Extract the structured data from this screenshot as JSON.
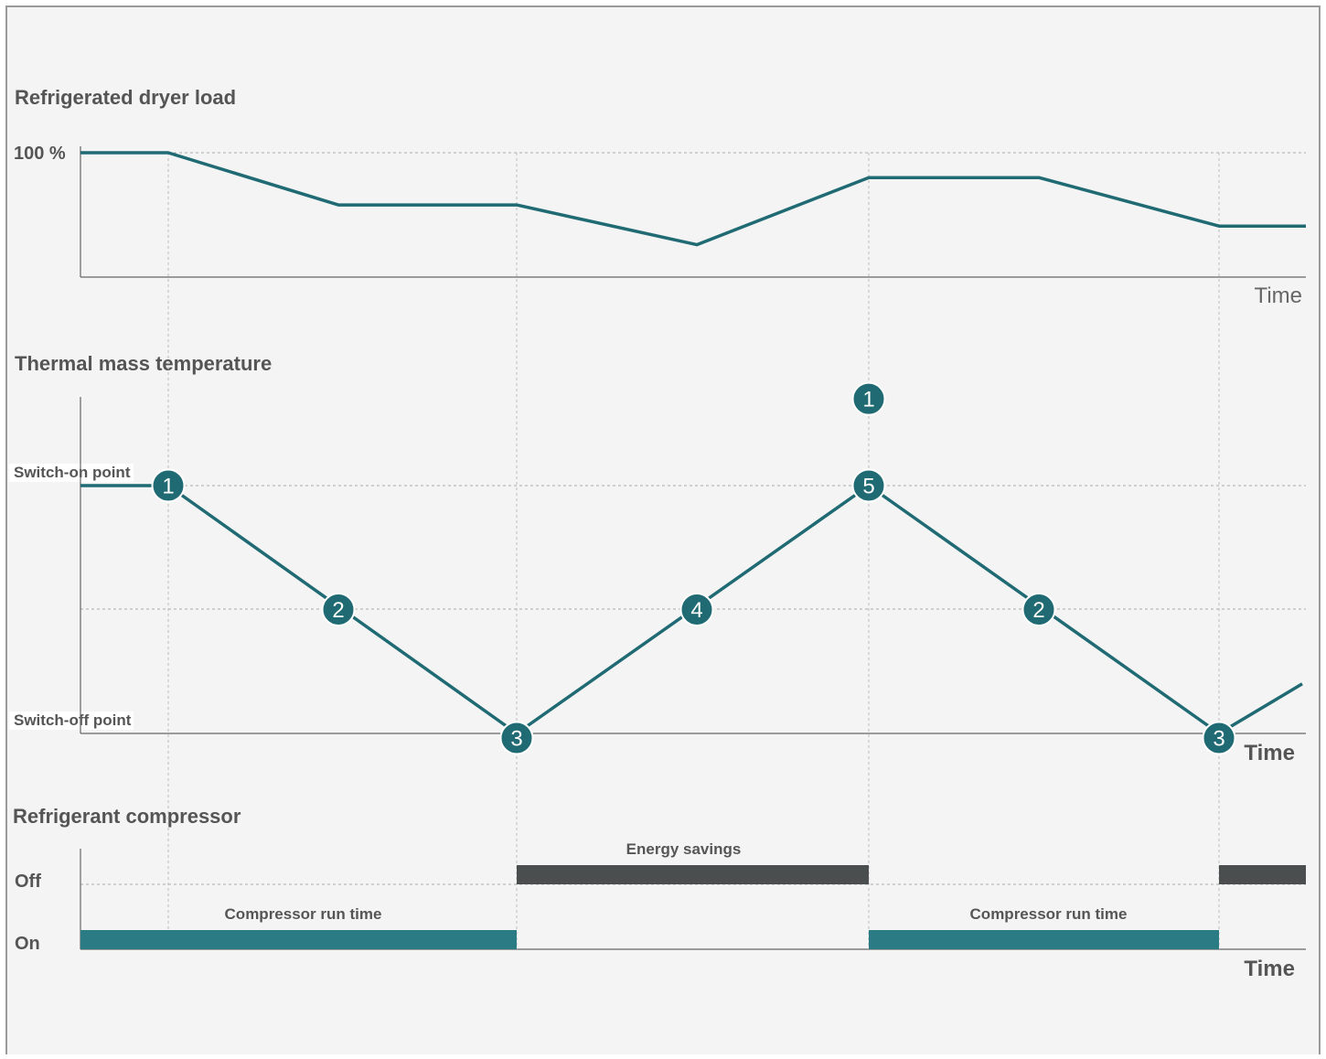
{
  "panels": {
    "load": {
      "title": "Refrigerated dryer load",
      "y_label": "100 %",
      "x_label": "Time",
      "series": [
        {
          "t": 0,
          "v": 100
        },
        {
          "t": 1,
          "v": 100
        },
        {
          "t": 3,
          "v": 58
        },
        {
          "t": 5,
          "v": 58
        },
        {
          "t": 7,
          "v": 26
        },
        {
          "t": 9,
          "v": 80
        },
        {
          "t": 11,
          "v": 80
        },
        {
          "t": 13,
          "v": 41
        },
        {
          "t": 14,
          "v": 41
        }
      ]
    },
    "temperature": {
      "title": "Thermal mass temperature",
      "switch_on_label": "Switch-on point",
      "switch_off_label": "Switch-off point",
      "x_label": "Time",
      "series": [
        {
          "t": 0,
          "v": 1
        },
        {
          "t": 1,
          "v": 1
        },
        {
          "t": 5,
          "v": 0
        },
        {
          "t": 9,
          "v": 1
        },
        {
          "t": 13,
          "v": 0
        },
        {
          "t": 14,
          "v": 0.2
        }
      ],
      "markers": [
        {
          "label": "1",
          "t": 1,
          "v": 1
        },
        {
          "label": "2",
          "t": 3,
          "v": 0.5
        },
        {
          "label": "3",
          "t": 5,
          "v": 0
        },
        {
          "label": "4",
          "t": 7,
          "v": 0.5
        },
        {
          "label": "5",
          "t": 9,
          "v": 1
        },
        {
          "label": "1",
          "t": 9,
          "v": 1.35
        },
        {
          "label": "2",
          "t": 11,
          "v": 0.5
        },
        {
          "label": "3",
          "t": 13,
          "v": 0
        }
      ]
    },
    "compressor": {
      "title": "Refrigerant compressor",
      "off_label": "Off",
      "on_label": "On",
      "x_label": "Time",
      "segments": [
        {
          "state": "on",
          "t0": 0,
          "t1": 5,
          "label": "Compressor run time"
        },
        {
          "state": "off",
          "t0": 5,
          "t1": 9,
          "label": "Energy savings"
        },
        {
          "state": "on",
          "t0": 9,
          "t1": 13,
          "label": "Compressor run time"
        },
        {
          "state": "off",
          "t0": 13,
          "t1": 14,
          "label": ""
        }
      ]
    }
  },
  "colors": {
    "line": "#1f6a73",
    "marker": "#1f6a73",
    "on_bar": "#2a7b83",
    "off_bar": "#4a4e4f",
    "background": "#f4f4f4",
    "frame": "#9a9a9a"
  }
}
